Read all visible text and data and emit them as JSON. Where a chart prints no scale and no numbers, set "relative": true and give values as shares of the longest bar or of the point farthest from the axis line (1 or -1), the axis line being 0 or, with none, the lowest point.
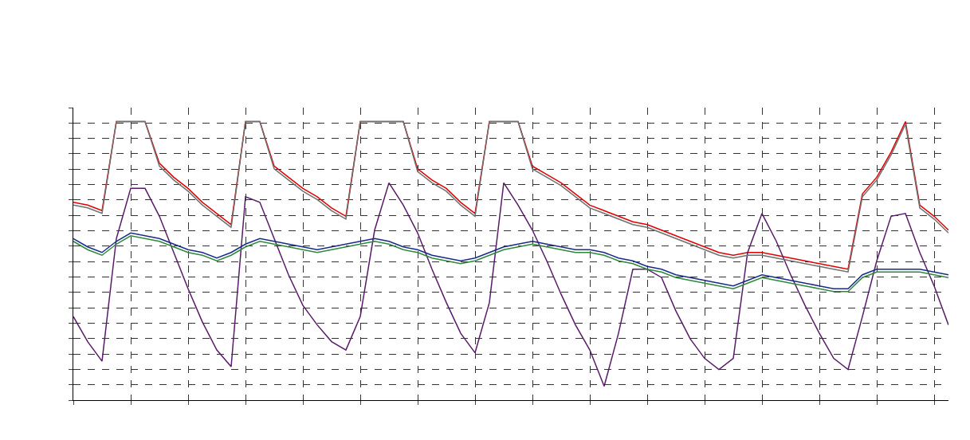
{
  "chart_data": {
    "type": "line",
    "relative": true,
    "grid": true,
    "line_style": "solid",
    "marker": "none",
    "categories": [
      null,
      null,
      null,
      null,
      null,
      null,
      null,
      null,
      null,
      null,
      null,
      null,
      null,
      null,
      null,
      null,
      null,
      null,
      null,
      null,
      null,
      null,
      null,
      null,
      null,
      null,
      null,
      null,
      null,
      null,
      null,
      null,
      null,
      null,
      null,
      null,
      null,
      null,
      null,
      null,
      null,
      null,
      null,
      null,
      null,
      null,
      null,
      null,
      null,
      null,
      null,
      null,
      null,
      null,
      null,
      null,
      null,
      null,
      null,
      null,
      null,
      null
    ],
    "series": [
      {
        "color": "#e00000",
        "values": [
          0.71,
          0.7,
          0.68,
          1,
          1,
          1,
          0.85,
          0.8,
          0.76,
          0.71,
          0.67,
          0.63,
          1,
          1,
          0.84,
          0.8,
          0.76,
          0.73,
          0.69,
          0.66,
          1,
          1,
          1,
          1,
          0.83,
          0.79,
          0.76,
          0.71,
          0.67,
          1,
          1,
          1,
          0.84,
          0.81,
          0.78,
          0.74,
          0.7,
          0.68,
          0.66,
          0.64,
          0.63,
          0.61,
          0.59,
          0.57,
          0.55,
          0.53,
          0.52,
          0.53,
          0.53,
          0.52,
          0.51,
          0.5,
          0.49,
          0.48,
          0.47,
          0.74,
          0.8,
          0.89,
          1,
          0.7,
          0.66,
          0.61
        ]
      },
      {
        "color": "#5a1a6a",
        "values": [
          0.3,
          0.21,
          0.14,
          0.58,
          0.76,
          0.76,
          0.66,
          0.53,
          0.4,
          0.28,
          0.18,
          0.12,
          0.73,
          0.71,
          0.58,
          0.45,
          0.34,
          0.27,
          0.21,
          0.18,
          0.3,
          0.61,
          0.78,
          0.7,
          0.6,
          0.47,
          0.35,
          0.24,
          0.17,
          0.35,
          0.78,
          0.7,
          0.61,
          0.5,
          0.38,
          0.27,
          0.18,
          0.05,
          0.24,
          0.47,
          0.47,
          0.44,
          0.32,
          0.22,
          0.15,
          0.11,
          0.15,
          0.53,
          0.67,
          0.57,
          0.45,
          0.34,
          0.24,
          0.15,
          0.11,
          0.3,
          0.5,
          0.66,
          0.67,
          0.53,
          0.41,
          0.27
        ]
      },
      {
        "color": "#707070",
        "values": [
          0.7,
          0.69,
          0.67,
          1,
          1,
          1,
          0.84,
          0.79,
          0.75,
          0.7,
          0.66,
          0.62,
          1,
          1,
          0.83,
          0.79,
          0.75,
          0.72,
          0.68,
          0.65,
          1,
          1,
          1,
          1,
          0.82,
          0.78,
          0.75,
          0.7,
          0.66,
          1,
          1,
          1,
          0.83,
          0.8,
          0.77,
          0.73,
          0.69,
          0.67,
          0.65,
          0.63,
          0.62,
          0.6,
          0.58,
          0.56,
          0.54,
          0.52,
          0.51,
          0.52,
          0.52,
          0.51,
          0.5,
          0.49,
          0.48,
          0.47,
          0.46,
          0.73,
          0.79,
          0.88,
          0.99,
          0.69,
          0.65,
          0.6
        ]
      },
      {
        "color": "#1a2a8a",
        "values": [
          0.58,
          0.55,
          0.53,
          0.57,
          0.6,
          0.59,
          0.58,
          0.56,
          0.54,
          0.53,
          0.51,
          0.53,
          0.56,
          0.58,
          0.57,
          0.56,
          0.55,
          0.54,
          0.55,
          0.56,
          0.57,
          0.58,
          0.57,
          0.55,
          0.54,
          0.52,
          0.51,
          0.5,
          0.51,
          0.53,
          0.55,
          0.56,
          0.57,
          0.56,
          0.55,
          0.54,
          0.54,
          0.53,
          0.51,
          0.5,
          0.48,
          0.47,
          0.45,
          0.44,
          0.43,
          0.42,
          0.41,
          0.43,
          0.45,
          0.44,
          0.43,
          0.42,
          0.41,
          0.4,
          0.4,
          0.45,
          0.47,
          0.47,
          0.47,
          0.47,
          0.46,
          0.45
        ]
      },
      {
        "color": "#2a8a3a",
        "values": [
          0.57,
          0.54,
          0.52,
          0.56,
          0.59,
          0.58,
          0.57,
          0.55,
          0.53,
          0.52,
          0.5,
          0.52,
          0.55,
          0.57,
          0.56,
          0.55,
          0.54,
          0.53,
          0.54,
          0.55,
          0.56,
          0.57,
          0.56,
          0.54,
          0.53,
          0.51,
          0.5,
          0.49,
          0.5,
          0.52,
          0.54,
          0.55,
          0.56,
          0.55,
          0.54,
          0.53,
          0.53,
          0.52,
          0.5,
          0.49,
          0.47,
          0.46,
          0.44,
          0.43,
          0.42,
          0.41,
          0.4,
          0.42,
          0.44,
          0.43,
          0.42,
          0.41,
          0.4,
          0.39,
          0.39,
          0.44,
          0.46,
          0.46,
          0.46,
          0.46,
          0.45,
          0.44
        ]
      }
    ]
  }
}
